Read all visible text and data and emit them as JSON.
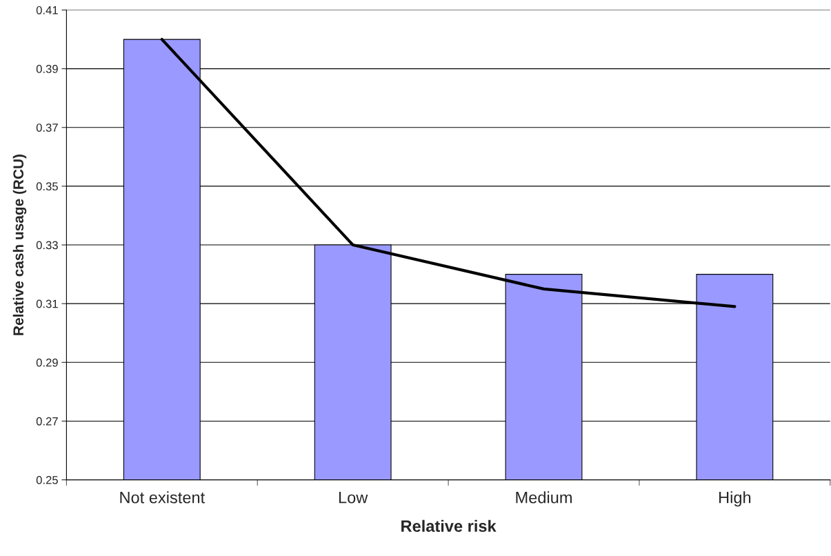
{
  "chart_data": {
    "type": "bar",
    "xlabel": "Relative risk",
    "ylabel": "Relative cash usage (RCU)",
    "categories": [
      "Not existent",
      "Low",
      "Medium",
      "High"
    ],
    "series": [
      {
        "color": "#9999ff",
        "values": [
          0.4,
          0.33,
          0.32,
          0.32
        ]
      },
      {
        "type": "line",
        "color": "#000000",
        "values": [
          0.4,
          0.33,
          0.315,
          0.309
        ]
      }
    ],
    "ylim": [
      0.25,
      0.41
    ],
    "yticks": [
      0.25,
      0.27,
      0.29,
      0.31,
      0.33,
      0.35,
      0.37,
      0.39,
      0.41
    ],
    "grid": "y",
    "legend": false
  }
}
